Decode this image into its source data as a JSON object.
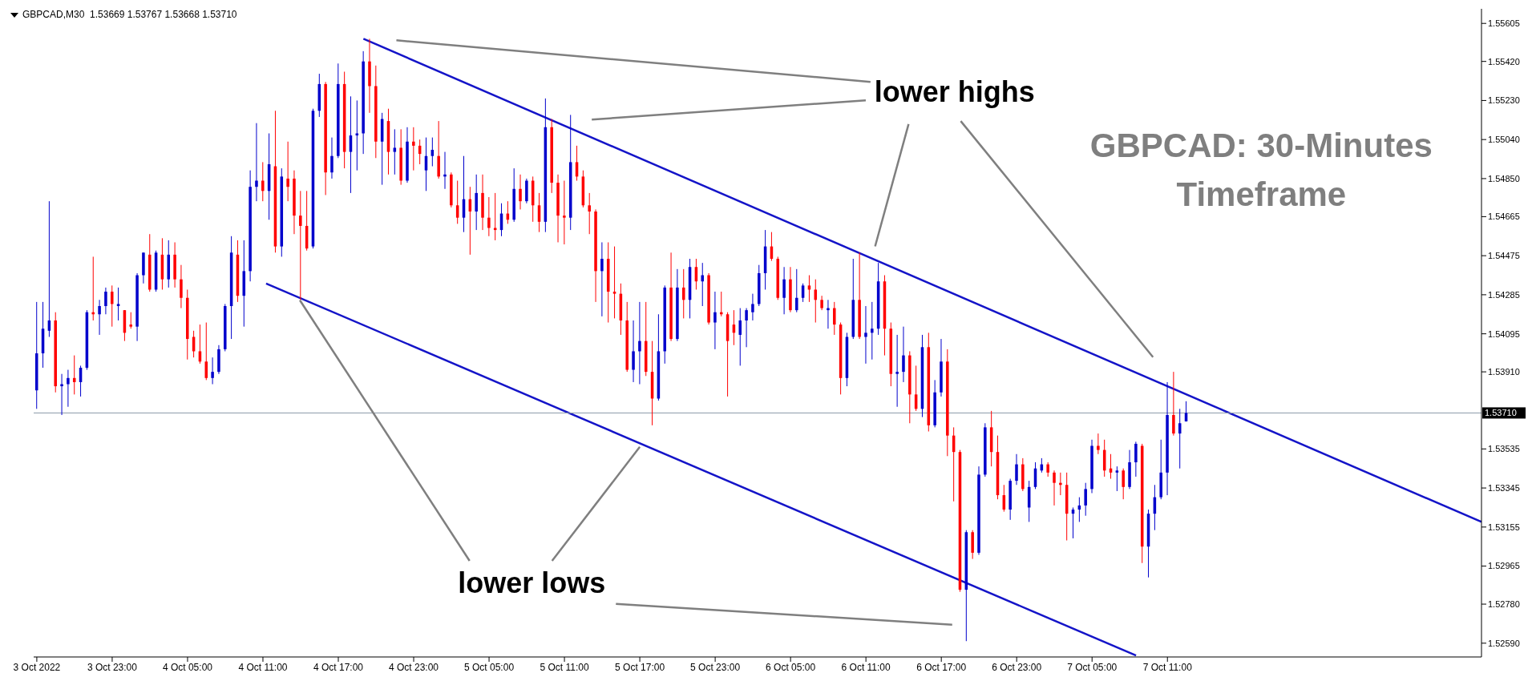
{
  "chart_data": {
    "type": "candlestick",
    "title": "GBPCAD: 30-Minutes Timeframe",
    "annotations": [
      "GBPCAD,M30  1.53669 1.53767 1.53668 1.53710",
      "lower highs",
      {
        "text": "lower lows",
        "x": "2022-10-05T17:00",
        "y": 1.5356
      }
    ],
    "x": [
      "2022-10-03T17:00",
      "2022-10-03T17:30",
      "2022-10-03T18:00",
      "2022-10-03T18:30",
      "2022-10-03T19:00",
      "2022-10-03T19:30",
      "2022-10-03T20:00",
      "2022-10-03T20:30",
      "2022-10-03T21:00",
      "2022-10-03T21:30",
      "2022-10-03T22:00",
      "2022-10-03T22:30",
      "2022-10-03T23:00",
      "2022-10-03T23:30",
      "2022-10-04T00:00",
      "2022-10-04T00:30",
      "2022-10-04T01:00",
      "2022-10-04T01:30",
      "2022-10-04T02:00",
      "2022-10-04T02:30",
      "2022-10-04T03:00",
      "2022-10-04T03:30",
      "2022-10-04T04:00",
      "2022-10-04T04:30",
      "2022-10-04T05:00",
      "2022-10-04T05:30",
      "2022-10-04T06:00",
      "2022-10-04T06:30",
      "2022-10-04T07:00",
      "2022-10-04T07:30",
      "2022-10-04T08:00",
      "2022-10-04T08:30",
      "2022-10-04T09:00",
      "2022-10-04T09:30",
      "2022-10-04T10:00",
      "2022-10-04T10:30",
      "2022-10-04T11:00",
      "2022-10-04T11:30",
      "2022-10-04T12:00",
      "2022-10-04T12:30",
      "2022-10-04T13:00",
      "2022-10-04T13:30",
      "2022-10-04T14:00",
      "2022-10-04T14:30",
      "2022-10-04T15:00",
      "2022-10-04T15:30",
      "2022-10-04T16:00",
      "2022-10-04T16:30",
      "2022-10-04T17:00",
      "2022-10-04T17:30",
      "2022-10-04T18:00",
      "2022-10-04T18:30",
      "2022-10-04T19:00",
      "2022-10-04T19:30",
      "2022-10-04T20:00",
      "2022-10-04T20:30",
      "2022-10-04T21:00",
      "2022-10-04T21:30",
      "2022-10-04T22:00",
      "2022-10-04T22:30",
      "2022-10-04T23:00",
      "2022-10-04T23:30",
      "2022-10-05T00:00",
      "2022-10-05T00:30",
      "2022-10-05T01:00",
      "2022-10-05T01:30",
      "2022-10-05T02:00",
      "2022-10-05T02:30",
      "2022-10-05T03:00",
      "2022-10-05T03:30",
      "2022-10-05T04:00",
      "2022-10-05T04:30",
      "2022-10-05T05:00",
      "2022-10-05T05:30",
      "2022-10-05T06:00",
      "2022-10-05T06:30",
      "2022-10-05T07:00",
      "2022-10-05T07:30",
      "2022-10-05T08:00",
      "2022-10-05T08:30",
      "2022-10-05T09:00",
      "2022-10-05T09:30",
      "2022-10-05T10:00",
      "2022-10-05T10:30",
      "2022-10-05T11:00",
      "2022-10-05T11:30",
      "2022-10-05T12:00",
      "2022-10-05T12:30",
      "2022-10-05T13:00",
      "2022-10-05T13:30",
      "2022-10-05T14:00",
      "2022-10-05T14:30",
      "2022-10-05T15:00",
      "2022-10-05T15:30",
      "2022-10-05T16:00",
      "2022-10-05T16:30",
      "2022-10-05T17:00",
      "2022-10-05T17:30",
      "2022-10-05T18:00",
      "2022-10-05T18:30",
      "2022-10-05T19:00",
      "2022-10-05T19:30",
      "2022-10-05T20:00",
      "2022-10-05T20:30",
      "2022-10-05T21:00",
      "2022-10-05T21:30",
      "2022-10-05T22:00",
      "2022-10-05T22:30",
      "2022-10-05T23:00",
      "2022-10-05T23:30",
      "2022-10-06T00:00",
      "2022-10-06T00:30",
      "2022-10-06T01:00",
      "2022-10-06T01:30",
      "2022-10-06T02:00",
      "2022-10-06T02:30",
      "2022-10-06T03:00",
      "2022-10-06T03:30",
      "2022-10-06T04:00",
      "2022-10-06T04:30",
      "2022-10-06T05:00",
      "2022-10-06T05:30",
      "2022-10-06T06:00",
      "2022-10-06T06:30",
      "2022-10-06T07:00",
      "2022-10-06T07:30",
      "2022-10-06T08:00",
      "2022-10-06T08:30",
      "2022-10-06T09:00",
      "2022-10-06T09:30",
      "2022-10-06T10:00",
      "2022-10-06T10:30",
      "2022-10-06T11:00",
      "2022-10-06T11:30",
      "2022-10-06T12:00",
      "2022-10-06T12:30",
      "2022-10-06T13:00",
      "2022-10-06T13:30",
      "2022-10-06T14:00",
      "2022-10-06T14:30",
      "2022-10-06T15:00",
      "2022-10-06T15:30",
      "2022-10-06T16:00",
      "2022-10-06T16:30",
      "2022-10-06T17:00",
      "2022-10-06T17:30",
      "2022-10-06T18:00",
      "2022-10-06T18:30",
      "2022-10-06T19:00",
      "2022-10-06T19:30",
      "2022-10-06T20:00",
      "2022-10-06T20:30",
      "2022-10-06T21:00",
      "2022-10-06T21:30",
      "2022-10-06T22:00",
      "2022-10-06T22:30",
      "2022-10-06T23:00",
      "2022-10-06T23:30",
      "2022-10-07T00:00",
      "2022-10-07T00:30",
      "2022-10-07T01:00",
      "2022-10-07T01:30",
      "2022-10-07T02:00",
      "2022-10-07T02:30",
      "2022-10-07T03:00",
      "2022-10-07T03:30",
      "2022-10-07T04:00",
      "2022-10-07T04:30",
      "2022-10-07T05:00",
      "2022-10-07T05:30",
      "2022-10-07T06:00",
      "2022-10-07T06:30",
      "2022-10-07T07:00",
      "2022-10-07T07:30",
      "2022-10-07T08:00",
      "2022-10-07T08:30",
      "2022-10-07T09:00",
      "2022-10-07T09:30",
      "2022-10-07T10:00",
      "2022-10-07T10:30",
      "2022-10-07T11:00",
      "2022-10-07T11:30",
      "2022-10-07T12:00",
      "2022-10-07T12:30"
    ],
    "ohlc": [
      [
        1.5382,
        1.5425,
        1.5373,
        1.54
      ],
      [
        1.54,
        1.5425,
        1.5393,
        1.5412
      ],
      [
        1.5411,
        1.5474,
        1.5408,
        1.5416
      ],
      [
        1.5416,
        1.542,
        1.5381,
        1.5384
      ],
      [
        1.5384,
        1.539,
        1.537,
        1.5385
      ],
      [
        1.5385,
        1.5392,
        1.5374,
        1.5388
      ],
      [
        1.5388,
        1.5399,
        1.538,
        1.5386
      ],
      [
        1.5386,
        1.5394,
        1.5379,
        1.5393
      ],
      [
        1.5393,
        1.5421,
        1.5392,
        1.542
      ],
      [
        1.542,
        1.5447,
        1.5416,
        1.5419
      ],
      [
        1.5419,
        1.5426,
        1.5409,
        1.5423
      ],
      [
        1.5423,
        1.5432,
        1.5419,
        1.543
      ],
      [
        1.543,
        1.5433,
        1.5413,
        1.5424
      ],
      [
        1.5423,
        1.5432,
        1.5416,
        1.5424
      ],
      [
        1.5421,
        1.5421,
        1.5406,
        1.541
      ],
      [
        1.5414,
        1.542,
        1.5412,
        1.5413
      ],
      [
        1.5413,
        1.5439,
        1.5406,
        1.5438
      ],
      [
        1.5438,
        1.5449,
        1.5434,
        1.5449
      ],
      [
        1.5448,
        1.5458,
        1.543,
        1.5431
      ],
      [
        1.5431,
        1.545,
        1.543,
        1.5449
      ],
      [
        1.5448,
        1.5456,
        1.5431,
        1.5436
      ],
      [
        1.5436,
        1.5455,
        1.5432,
        1.5448
      ],
      [
        1.5448,
        1.5454,
        1.5432,
        1.5436
      ],
      [
        1.5436,
        1.5443,
        1.5422,
        1.5427
      ],
      [
        1.5427,
        1.5431,
        1.5397,
        1.5407
      ],
      [
        1.5408,
        1.5411,
        1.5398,
        1.5401
      ],
      [
        1.5401,
        1.5414,
        1.5395,
        1.5396
      ],
      [
        1.5396,
        1.5415,
        1.5387,
        1.5388
      ],
      [
        1.5388,
        1.5398,
        1.5385,
        1.5391
      ],
      [
        1.5391,
        1.5404,
        1.539,
        1.5402
      ],
      [
        1.5402,
        1.5424,
        1.5401,
        1.5423
      ],
      [
        1.5423,
        1.5457,
        1.5407,
        1.5449
      ],
      [
        1.5448,
        1.5455,
        1.5425,
        1.5428
      ],
      [
        1.5428,
        1.5455,
        1.5413,
        1.544
      ],
      [
        1.544,
        1.5489,
        1.5435,
        1.5481
      ],
      [
        1.5481,
        1.5512,
        1.5474,
        1.5484
      ],
      [
        1.5484,
        1.5493,
        1.5474,
        1.5479
      ],
      [
        1.5479,
        1.5507,
        1.5465,
        1.5492
      ],
      [
        1.5491,
        1.5518,
        1.5449,
        1.5452
      ],
      [
        1.5452,
        1.549,
        1.5447,
        1.5486
      ],
      [
        1.5485,
        1.5503,
        1.5474,
        1.5481
      ],
      [
        1.5485,
        1.5489,
        1.5458,
        1.5467
      ],
      [
        1.5467,
        1.5479,
        1.5426,
        1.5462
      ],
      [
        1.5462,
        1.5479,
        1.545,
        1.5451
      ],
      [
        1.5452,
        1.5519,
        1.5451,
        1.5518
      ],
      [
        1.5518,
        1.5536,
        1.5515,
        1.5531
      ],
      [
        1.5531,
        1.5532,
        1.5477,
        1.5488
      ],
      [
        1.5488,
        1.5505,
        1.5485,
        1.5496
      ],
      [
        1.5496,
        1.5541,
        1.5495,
        1.5531
      ],
      [
        1.5531,
        1.5537,
        1.549,
        1.5498
      ],
      [
        1.5498,
        1.5525,
        1.5478,
        1.5506
      ],
      [
        1.5506,
        1.5523,
        1.5489,
        1.5507
      ],
      [
        1.5507,
        1.5547,
        1.5497,
        1.5542
      ],
      [
        1.5542,
        1.5553,
        1.5517,
        1.553
      ],
      [
        1.553,
        1.554,
        1.5495,
        1.5503
      ],
      [
        1.5503,
        1.5517,
        1.5482,
        1.5514
      ],
      [
        1.5513,
        1.5519,
        1.5487,
        1.5498
      ],
      [
        1.5498,
        1.5509,
        1.5487,
        1.55
      ],
      [
        1.55,
        1.5509,
        1.5482,
        1.5484
      ],
      [
        1.5484,
        1.551,
        1.5483,
        1.5503
      ],
      [
        1.5503,
        1.551,
        1.5489,
        1.5501
      ],
      [
        1.5501,
        1.5504,
        1.5492,
        1.5497
      ],
      [
        1.5489,
        1.5505,
        1.5479,
        1.5496
      ],
      [
        1.5496,
        1.5505,
        1.5491,
        1.5499
      ],
      [
        1.5496,
        1.5513,
        1.5485,
        1.5486
      ],
      [
        1.5486,
        1.5498,
        1.548,
        1.5487
      ],
      [
        1.5487,
        1.5488,
        1.5471,
        1.5472
      ],
      [
        1.5472,
        1.5484,
        1.5463,
        1.5466
      ],
      [
        1.5466,
        1.5496,
        1.5459,
        1.5475
      ],
      [
        1.5475,
        1.5481,
        1.5448,
        1.5469
      ],
      [
        1.5469,
        1.5487,
        1.546,
        1.5478
      ],
      [
        1.5478,
        1.5487,
        1.546,
        1.5466
      ],
      [
        1.5466,
        1.5476,
        1.5457,
        1.5461
      ],
      [
        1.5461,
        1.5478,
        1.5455,
        1.546
      ],
      [
        1.546,
        1.5473,
        1.5457,
        1.5468
      ],
      [
        1.5468,
        1.5474,
        1.5463,
        1.5465
      ],
      [
        1.5465,
        1.549,
        1.5464,
        1.548
      ],
      [
        1.548,
        1.5487,
        1.547,
        1.5474
      ],
      [
        1.5474,
        1.5485,
        1.5473,
        1.5484
      ],
      [
        1.5484,
        1.5486,
        1.5464,
        1.5472
      ],
      [
        1.5472,
        1.5478,
        1.5459,
        1.5464
      ],
      [
        1.5464,
        1.5524,
        1.5459,
        1.551
      ],
      [
        1.551,
        1.5514,
        1.5478,
        1.5483
      ],
      [
        1.5483,
        1.5487,
        1.5454,
        1.5467
      ],
      [
        1.5467,
        1.5484,
        1.5453,
        1.5466
      ],
      [
        1.5466,
        1.5516,
        1.546,
        1.5493
      ],
      [
        1.5493,
        1.5501,
        1.5484,
        1.5486
      ],
      [
        1.5486,
        1.5489,
        1.5471,
        1.5472
      ],
      [
        1.5472,
        1.5478,
        1.5458,
        1.5469
      ],
      [
        1.5469,
        1.547,
        1.5425,
        1.544
      ],
      [
        1.544,
        1.5454,
        1.5418,
        1.5446
      ],
      [
        1.5446,
        1.5454,
        1.5415,
        1.543
      ],
      [
        1.543,
        1.5452,
        1.5417,
        1.5429
      ],
      [
        1.5429,
        1.5434,
        1.5409,
        1.5416
      ],
      [
        1.5416,
        1.5425,
        1.5391,
        1.5392
      ],
      [
        1.5392,
        1.5416,
        1.5386,
        1.5401
      ],
      [
        1.5401,
        1.5425,
        1.5385,
        1.5406
      ],
      [
        1.5406,
        1.5425,
        1.5389,
        1.5391
      ],
      [
        1.5391,
        1.5406,
        1.5365,
        1.5378
      ],
      [
        1.5378,
        1.5419,
        1.5377,
        1.5401
      ],
      [
        1.5401,
        1.5433,
        1.5395,
        1.5432
      ],
      [
        1.5432,
        1.5449,
        1.5406,
        1.5407
      ],
      [
        1.5407,
        1.5441,
        1.5406,
        1.5432
      ],
      [
        1.5432,
        1.5441,
        1.5417,
        1.5426
      ],
      [
        1.5426,
        1.5446,
        1.5417,
        1.5442
      ],
      [
        1.5442,
        1.5446,
        1.5431,
        1.5435
      ],
      [
        1.5435,
        1.5444,
        1.5423,
        1.5438
      ],
      [
        1.5438,
        1.5439,
        1.5414,
        1.5415
      ],
      [
        1.5415,
        1.543,
        1.5402,
        1.542
      ],
      [
        1.542,
        1.543,
        1.5418,
        1.5419
      ],
      [
        1.5419,
        1.542,
        1.5379,
        1.5406
      ],
      [
        1.5414,
        1.5421,
        1.5404,
        1.541
      ],
      [
        1.5409,
        1.5422,
        1.5394,
        1.5416
      ],
      [
        1.5416,
        1.5422,
        1.5403,
        1.5421
      ],
      [
        1.542,
        1.5429,
        1.5416,
        1.5424
      ],
      [
        1.5424,
        1.5443,
        1.5423,
        1.5439
      ],
      [
        1.5439,
        1.546,
        1.5431,
        1.5452
      ],
      [
        1.5452,
        1.5459,
        1.5445,
        1.5446
      ],
      [
        1.5446,
        1.5447,
        1.5426,
        1.5427
      ],
      [
        1.5427,
        1.5442,
        1.5419,
        1.5436
      ],
      [
        1.5436,
        1.5442,
        1.542,
        1.5421
      ],
      [
        1.5421,
        1.5441,
        1.542,
        1.5427
      ],
      [
        1.5427,
        1.5434,
        1.5425,
        1.5433
      ],
      [
        1.5433,
        1.5438,
        1.5425,
        1.5431
      ],
      [
        1.5431,
        1.5436,
        1.5415,
        1.5426
      ],
      [
        1.5426,
        1.5428,
        1.5421,
        1.5422
      ],
      [
        1.5421,
        1.5426,
        1.5412,
        1.5422
      ],
      [
        1.5422,
        1.5425,
        1.5409,
        1.5414
      ],
      [
        1.5414,
        1.5415,
        1.538,
        1.5388
      ],
      [
        1.5388,
        1.541,
        1.5384,
        1.5408
      ],
      [
        1.5408,
        1.5446,
        1.5407,
        1.5426
      ],
      [
        1.5426,
        1.5449,
        1.5407,
        1.5408
      ],
      [
        1.5408,
        1.5423,
        1.5395,
        1.541
      ],
      [
        1.541,
        1.5425,
        1.5397,
        1.5412
      ],
      [
        1.5412,
        1.5444,
        1.5409,
        1.5435
      ],
      [
        1.5435,
        1.5438,
        1.5399,
        1.5412
      ],
      [
        1.5412,
        1.5415,
        1.5384,
        1.539
      ],
      [
        1.539,
        1.5409,
        1.5374,
        1.5391
      ],
      [
        1.5391,
        1.5413,
        1.5386,
        1.5399
      ],
      [
        1.5399,
        1.5401,
        1.5366,
        1.538
      ],
      [
        1.538,
        1.5394,
        1.5372,
        1.5373
      ],
      [
        1.5373,
        1.5409,
        1.5369,
        1.5403
      ],
      [
        1.5403,
        1.541,
        1.5362,
        1.5365
      ],
      [
        1.5365,
        1.5387,
        1.5364,
        1.5381
      ],
      [
        1.5381,
        1.5407,
        1.5379,
        1.5396
      ],
      [
        1.5396,
        1.5402,
        1.535,
        1.536
      ],
      [
        1.536,
        1.5364,
        1.5328,
        1.5352
      ],
      [
        1.5352,
        1.5353,
        1.5284,
        1.5285
      ],
      [
        1.5285,
        1.5314,
        1.526,
        1.5313
      ],
      [
        1.5313,
        1.5314,
        1.53,
        1.5303
      ],
      [
        1.5303,
        1.5345,
        1.5302,
        1.5341
      ],
      [
        1.5341,
        1.5366,
        1.534,
        1.5364
      ],
      [
        1.5364,
        1.5372,
        1.5345,
        1.5352
      ],
      [
        1.5352,
        1.536,
        1.5329,
        1.5331
      ],
      [
        1.5331,
        1.5336,
        1.5323,
        1.5324
      ],
      [
        1.5324,
        1.5339,
        1.5319,
        1.5338
      ],
      [
        1.5338,
        1.5351,
        1.5336,
        1.5346
      ],
      [
        1.5346,
        1.5349,
        1.5333,
        1.5334
      ],
      [
        1.5325,
        1.5338,
        1.5318,
        1.5335
      ],
      [
        1.5335,
        1.5347,
        1.5334,
        1.5344
      ],
      [
        1.5343,
        1.5349,
        1.5342,
        1.5346
      ],
      [
        1.5346,
        1.5347,
        1.534,
        1.5342
      ],
      [
        1.5342,
        1.5343,
        1.5326,
        1.5337
      ],
      [
        1.5337,
        1.5342,
        1.5331,
        1.5336
      ],
      [
        1.5336,
        1.5342,
        1.5309,
        1.5322
      ],
      [
        1.5322,
        1.5325,
        1.531,
        1.5324
      ],
      [
        1.5324,
        1.533,
        1.5318,
        1.5326
      ],
      [
        1.5326,
        1.5337,
        1.5321,
        1.5334
      ],
      [
        1.5334,
        1.5358,
        1.5332,
        1.5355
      ],
      [
        1.5355,
        1.5361,
        1.5351,
        1.5353
      ],
      [
        1.5353,
        1.5358,
        1.534,
        1.5343
      ],
      [
        1.5344,
        1.5351,
        1.5339,
        1.5342
      ],
      [
        1.5342,
        1.5345,
        1.5333,
        1.5343
      ],
      [
        1.5343,
        1.5344,
        1.5329,
        1.5335
      ],
      [
        1.5335,
        1.5353,
        1.5334,
        1.5347
      ],
      [
        1.5347,
        1.5357,
        1.534,
        1.5356
      ],
      [
        1.5355,
        1.5356,
        1.5298,
        1.5306
      ],
      [
        1.5306,
        1.5324,
        1.5291,
        1.5322
      ],
      [
        1.5322,
        1.5336,
        1.5314,
        1.533
      ],
      [
        1.533,
        1.5358,
        1.5329,
        1.5342
      ],
      [
        1.5342,
        1.5386,
        1.5331,
        1.537
      ],
      [
        1.537,
        1.5391,
        1.536,
        1.5361
      ],
      [
        1.5361,
        1.5373,
        1.5344,
        1.5366
      ],
      [
        1.53669,
        1.53767,
        1.53668,
        1.5371
      ]
    ],
    "colors": [
      "#0000cc",
      "#0000cc",
      "#0000cc",
      "#ff0000",
      "#0000cc",
      "#0000cc",
      "#ff0000",
      "#0000cc",
      "#0000cc",
      "#ff0000",
      "#0000cc",
      "#0000cc",
      "#ff0000",
      "#0000cc",
      "#ff0000",
      "#ff0000",
      "#0000cc",
      "#0000cc",
      "#ff0000",
      "#0000cc",
      "#ff0000",
      "#0000cc",
      "#ff0000",
      "#ff0000",
      "#ff0000",
      "#ff0000",
      "#ff0000",
      "#ff0000",
      "#0000cc",
      "#0000cc",
      "#0000cc",
      "#0000cc",
      "#ff0000",
      "#0000cc",
      "#0000cc",
      "#0000cc",
      "#ff0000",
      "#0000cc",
      "#ff0000",
      "#0000cc",
      "#ff0000",
      "#ff0000",
      "#ff0000",
      "#ff0000",
      "#0000cc",
      "#0000cc",
      "#ff0000",
      "#0000cc",
      "#0000cc",
      "#ff0000",
      "#0000cc",
      "#0000cc",
      "#0000cc",
      "#ff0000",
      "#ff0000",
      "#0000cc",
      "#ff0000",
      "#0000cc",
      "#ff0000",
      "#0000cc",
      "#ff0000",
      "#ff0000",
      "#0000cc",
      "#0000cc",
      "#ff0000",
      "#0000cc",
      "#ff0000",
      "#ff0000",
      "#0000cc",
      "#ff0000",
      "#0000cc",
      "#ff0000",
      "#ff0000",
      "#ff0000",
      "#0000cc",
      "#ff0000",
      "#0000cc",
      "#ff0000",
      "#0000cc",
      "#ff0000",
      "#ff0000",
      "#0000cc",
      "#ff0000",
      "#ff0000",
      "#ff0000",
      "#0000cc",
      "#ff0000",
      "#ff0000",
      "#ff0000",
      "#ff0000",
      "#0000cc",
      "#ff0000",
      "#ff0000",
      "#ff0000",
      "#ff0000",
      "#0000cc",
      "#0000cc",
      "#ff0000",
      "#ff0000",
      "#0000cc",
      "#0000cc",
      "#ff0000",
      "#0000cc",
      "#ff0000",
      "#0000cc",
      "#ff0000",
      "#0000cc",
      "#ff0000",
      "#0000cc",
      "#ff0000",
      "#ff0000",
      "#ff0000",
      "#0000cc",
      "#0000cc",
      "#0000cc",
      "#0000cc",
      "#0000cc",
      "#ff0000",
      "#ff0000",
      "#0000cc",
      "#ff0000",
      "#0000cc",
      "#0000cc",
      "#ff0000",
      "#ff0000",
      "#ff0000",
      "#0000cc",
      "#ff0000",
      "#ff0000",
      "#0000cc",
      "#0000cc",
      "#ff0000",
      "#0000cc",
      "#0000cc",
      "#0000cc",
      "#ff0000",
      "#ff0000",
      "#0000cc",
      "#0000cc",
      "#ff0000",
      "#ff0000",
      "#0000cc",
      "#ff0000",
      "#0000cc",
      "#0000cc",
      "#ff0000",
      "#ff0000",
      "#ff0000",
      "#0000cc",
      "#ff0000",
      "#0000cc",
      "#0000cc",
      "#ff0000",
      "#ff0000",
      "#ff0000",
      "#0000cc",
      "#0000cc",
      "#ff0000",
      "#0000cc",
      "#0000cc",
      "#0000cc",
      "#ff0000",
      "#ff0000",
      "#ff0000",
      "#ff0000",
      "#0000cc",
      "#0000cc",
      "#0000cc",
      "#0000cc",
      "#ff0000",
      "#ff0000",
      "#ff0000",
      "#0000cc",
      "#ff0000",
      "#0000cc",
      "#0000cc",
      "#ff0000",
      "#0000cc",
      "#0000cc",
      "#0000cc",
      "#0000cc",
      "#ff0000",
      "#0000cc",
      "#0000cc"
    ],
    "series": [
      {
        "type": "line",
        "color": "#1414c8",
        "x": [
          "2022-10-04T19:00",
          "2022-10-08T12:00"
        ],
        "values": [
          1.5553,
          1.5318
        ]
      },
      {
        "type": "line",
        "color": "#1414c8",
        "x": [
          "2022-10-04T11:15",
          "2022-10-07T08:30"
        ],
        "values": [
          1.5434,
          1.5253
        ]
      }
    ],
    "ref_lines": [
      {
        "axis": "y",
        "value": 1.5371,
        "label": "1.53710",
        "color": "#8c9aa8"
      }
    ],
    "xlim": [
      "2022-10-03T16:45",
      "2022-10-08T12:00"
    ],
    "xticks": [
      {
        "value": "2022-10-03T17:00",
        "label": "3 Oct 2022"
      },
      {
        "value": "2022-10-03T23:00",
        "label": "3 Oct 23:00"
      },
      {
        "value": "2022-10-04T05:00",
        "label": "4 Oct 05:00"
      },
      {
        "value": "2022-10-04T11:00",
        "label": "4 Oct 11:00"
      },
      {
        "value": "2022-10-04T17:00",
        "label": "4 Oct 17:00"
      },
      {
        "value": "2022-10-04T23:00",
        "label": "4 Oct 23:00"
      },
      {
        "value": "2022-10-05T05:00",
        "label": "5 Oct 05:00"
      },
      {
        "value": "2022-10-05T11:00",
        "label": "5 Oct 11:00"
      },
      {
        "value": "2022-10-05T17:00",
        "label": "5 Oct 17:00"
      },
      {
        "value": "2022-10-05T23:00",
        "label": "5 Oct 23:00"
      },
      {
        "value": "2022-10-06T05:00",
        "label": "6 Oct 05:00"
      },
      {
        "value": "2022-10-06T11:00",
        "label": "6 Oct 11:00"
      },
      {
        "value": "2022-10-06T17:00",
        "label": "6 Oct 17:00"
      },
      {
        "value": "2022-10-06T23:00",
        "label": "6 Oct 23:00"
      },
      {
        "value": "2022-10-07T05:00",
        "label": "7 Oct 05:00"
      },
      {
        "value": "2022-10-07T11:00",
        "label": "7 Oct 11:00"
      }
    ],
    "ylim": [
      1.52523,
      1.55676
    ],
    "yticks": [
      {
        "value": 1.55605,
        "label": "1.55605"
      },
      {
        "value": 1.5542,
        "label": "1.55420"
      },
      {
        "value": 1.5523,
        "label": "1.55230"
      },
      {
        "value": 1.5504,
        "label": "1.55040"
      },
      {
        "value": 1.5485,
        "label": "1.54850"
      },
      {
        "value": 1.54665,
        "label": "1.54665"
      },
      {
        "value": 1.54475,
        "label": "1.54475"
      },
      {
        "value": 1.54285,
        "label": "1.54285"
      },
      {
        "value": 1.54095,
        "label": "1.54095"
      },
      {
        "value": 1.5391,
        "label": "1.53910"
      },
      {
        "value": 1.53535,
        "label": "1.53535"
      },
      {
        "value": 1.53345,
        "label": "1.53345"
      },
      {
        "value": 1.53155,
        "label": "1.53155"
      },
      {
        "value": 1.52965,
        "label": "1.52965"
      },
      {
        "value": 1.5278,
        "label": "1.52780"
      },
      {
        "value": 1.5259,
        "label": "1.52590"
      }
    ]
  }
}
